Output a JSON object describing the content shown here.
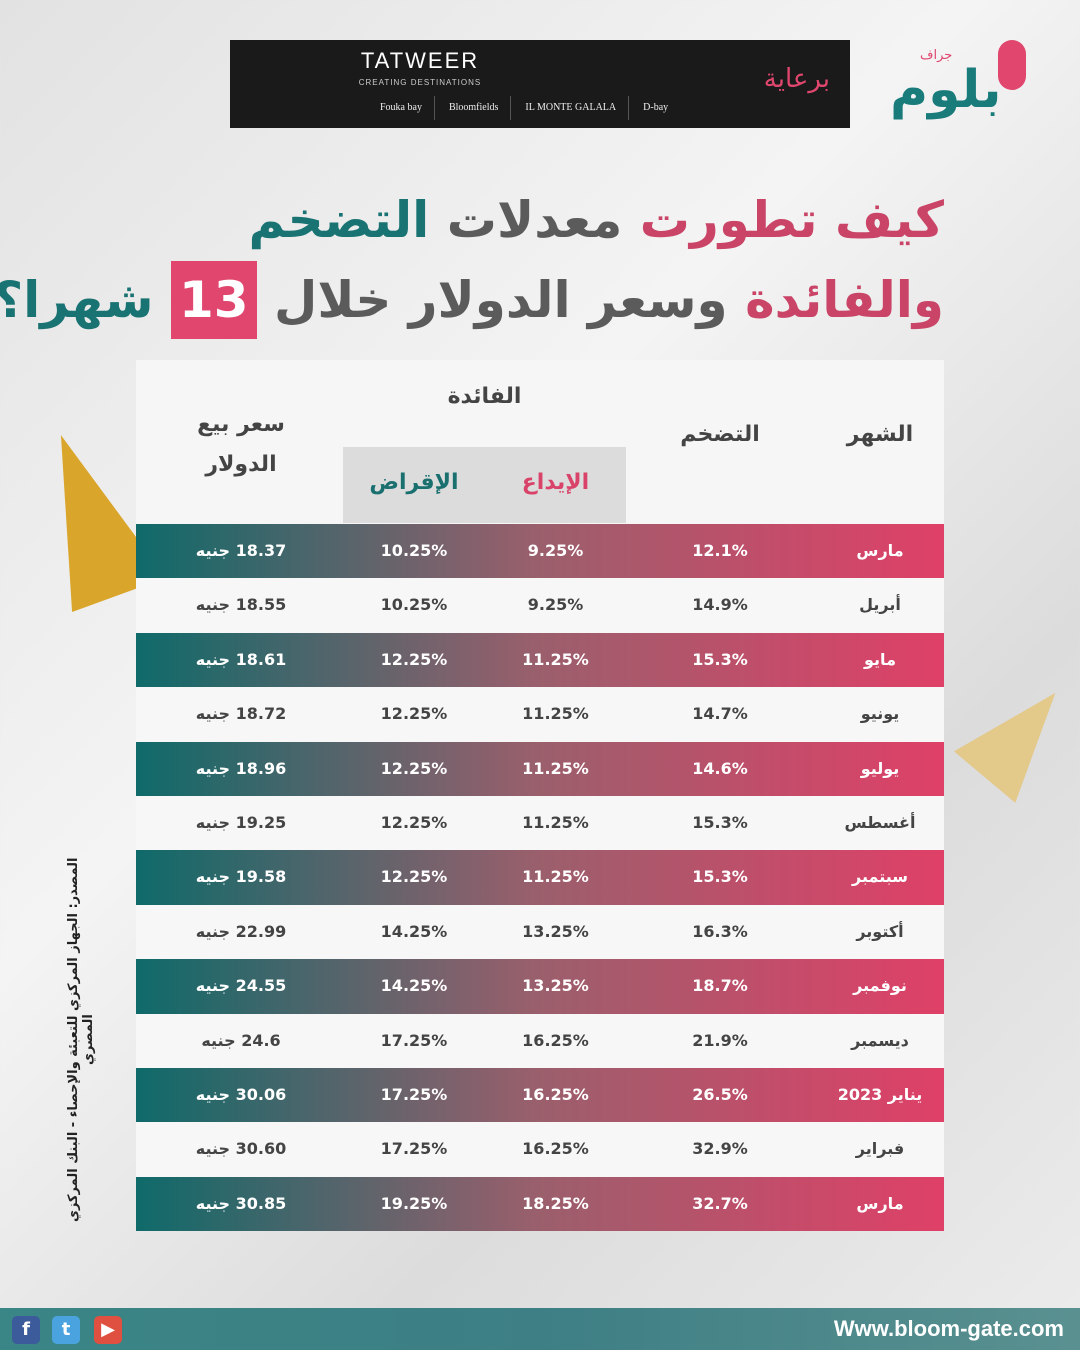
{
  "sponsor": {
    "label": "برعاية",
    "brand": "TATWEER",
    "brand_sub": "CREATING DESTINATIONS",
    "projects": [
      "Fouka bay",
      "Bloomfields",
      "IL MONTE GALALA",
      "D-bay"
    ]
  },
  "logo": {
    "text": "بلوم",
    "sub": "جراف"
  },
  "title": {
    "l1a": "كيف تطورت",
    "l1b": "معدلات",
    "l1c": "التضخم",
    "l2a": "والفائدة",
    "l2b": "وسعر الدولار خلال",
    "num": "13",
    "l2c": "شهرا؟"
  },
  "table": {
    "headers": {
      "month": "الشهر",
      "inflation": "التضخم",
      "interest": "الفائدة",
      "deposit": "الإيداع",
      "lending": "الإقراض",
      "dollar": "سعر بيع الدولار"
    },
    "rows": [
      {
        "month": "مارس",
        "inflation": "12.1%",
        "deposit": "9.25%",
        "lending": "10.25%",
        "dollar": "18.37 جنيه"
      },
      {
        "month": "أبريل",
        "inflation": "14.9%",
        "deposit": "9.25%",
        "lending": "10.25%",
        "dollar": "18.55 جنيه"
      },
      {
        "month": "مايو",
        "inflation": "15.3%",
        "deposit": "11.25%",
        "lending": "12.25%",
        "dollar": "18.61 جنيه"
      },
      {
        "month": "يونيو",
        "inflation": "14.7%",
        "deposit": "11.25%",
        "lending": "12.25%",
        "dollar": "18.72 جنيه"
      },
      {
        "month": "يوليو",
        "inflation": "14.6%",
        "deposit": "11.25%",
        "lending": "12.25%",
        "dollar": "18.96 جنيه"
      },
      {
        "month": "أغسطس",
        "inflation": "15.3%",
        "deposit": "11.25%",
        "lending": "12.25%",
        "dollar": "19.25 جنيه"
      },
      {
        "month": "سبتمبر",
        "inflation": "15.3%",
        "deposit": "11.25%",
        "lending": "12.25%",
        "dollar": "19.58 جنيه"
      },
      {
        "month": "أكتوبر",
        "inflation": "16.3%",
        "deposit": "13.25%",
        "lending": "14.25%",
        "dollar": "22.99 جنيه"
      },
      {
        "month": "نوفمبر",
        "inflation": "18.7%",
        "deposit": "13.25%",
        "lending": "14.25%",
        "dollar": "24.55 جنيه"
      },
      {
        "month": "ديسمبر",
        "inflation": "21.9%",
        "deposit": "16.25%",
        "lending": "17.25%",
        "dollar": "24.6 جنيه"
      },
      {
        "month": "يناير 2023",
        "inflation": "26.5%",
        "deposit": "16.25%",
        "lending": "17.25%",
        "dollar": "30.06 جنيه"
      },
      {
        "month": "فبراير",
        "inflation": "32.9%",
        "deposit": "16.25%",
        "lending": "17.25%",
        "dollar": "30.60 جنيه"
      },
      {
        "month": "مارس",
        "inflation": "32.7%",
        "deposit": "18.25%",
        "lending": "19.25%",
        "dollar": "30.85 جنيه"
      }
    ]
  },
  "source": "المصدر: الجهاز المركزي للتعبئة والإحصاء - البنك المركزي المصري",
  "footer": {
    "url": "Www.bloom-gate.com",
    "social": [
      "facebook-icon",
      "twitter-icon",
      "youtube-icon"
    ]
  },
  "colors": {
    "pink": "#e0466e",
    "teal": "#0f6a6a"
  }
}
